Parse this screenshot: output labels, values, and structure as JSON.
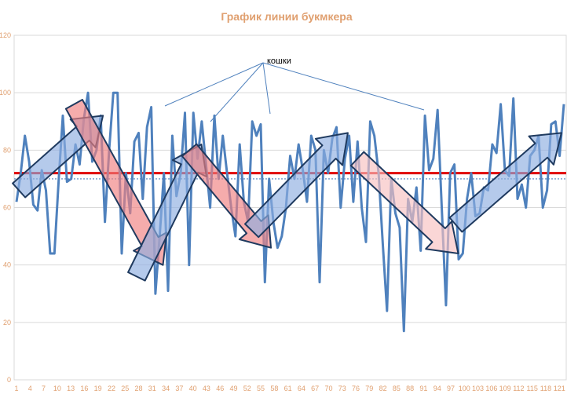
{
  "chart_data": {
    "type": "line",
    "title": "График линии букмкера",
    "xlabel": "",
    "ylabel": "",
    "ylim": [
      0,
      120
    ],
    "yticks": [
      "0",
      "20",
      "40",
      "60",
      "80",
      "100",
      "120"
    ],
    "xtick_labels": [
      "1",
      "4",
      "7",
      "10",
      "13",
      "16",
      "19",
      "22",
      "25",
      "28",
      "31",
      "34",
      "37",
      "40",
      "43",
      "46",
      "49",
      "52",
      "55",
      "58",
      "61",
      "64",
      "67",
      "70",
      "73",
      "76",
      "79",
      "82",
      "85",
      "88",
      "91",
      "94",
      "97",
      "100",
      "103",
      "106",
      "109",
      "112",
      "115",
      "118",
      "121"
    ],
    "grid": true,
    "legend": "none",
    "series": [
      {
        "values": [
          62,
          72,
          85,
          76,
          61,
          59,
          73,
          66,
          44,
          44,
          69,
          92,
          69,
          70,
          82,
          75,
          91,
          100,
          76,
          80,
          92,
          55,
          80,
          100,
          100,
          44,
          72,
          58,
          83,
          86,
          63,
          88,
          95,
          30,
          50,
          72,
          31,
          85,
          64,
          72,
          93,
          40,
          93,
          77,
          90,
          75,
          60,
          92,
          70,
          85,
          72,
          60,
          50,
          82,
          62,
          55,
          90,
          85,
          89,
          34,
          70,
          55,
          46,
          50,
          60,
          78,
          70,
          82,
          73,
          62,
          85,
          80,
          34,
          80,
          72,
          84,
          88,
          60,
          77,
          85,
          62,
          83,
          60,
          48,
          90,
          85,
          72,
          47,
          24,
          70,
          58,
          53,
          17,
          63,
          55,
          67,
          45,
          92,
          73,
          77,
          94,
          60,
          26,
          72,
          75,
          42,
          44,
          63,
          72,
          57,
          58,
          67,
          66,
          82,
          79,
          96,
          73,
          71,
          98,
          63,
          68,
          60,
          78,
          80,
          85,
          60,
          66,
          89,
          90,
          78,
          96
        ],
        "color": "#4F81BD"
      },
      {
        "values": [
          72,
          72
        ],
        "color": "#E00000"
      },
      {
        "values": [
          70,
          70
        ],
        "color": "#4F81BD",
        "style": "dotted"
      }
    ],
    "annotations": [
      {
        "text": "кошки"
      }
    ],
    "arrows": [
      {
        "color": "#8EADE0",
        "from": [
          2,
          66
        ],
        "to": [
          37,
          92
        ]
      },
      {
        "color": "#F08080",
        "from": [
          25,
          96
        ],
        "to": [
          62,
          40
        ]
      },
      {
        "color": "#8EADE0",
        "from": [
          51,
          36
        ],
        "to": [
          78,
          82
        ]
      },
      {
        "color": "#F08080",
        "from": [
          73,
          80
        ],
        "to": [
          107,
          46
        ]
      },
      {
        "color": "#8EADE0",
        "from": [
          99,
          52
        ],
        "to": [
          139,
          86
        ]
      },
      {
        "color": "#F8C0C0",
        "from": [
          143,
          77
        ],
        "to": [
          185,
          44
        ]
      },
      {
        "color": "#8EADE0",
        "from": [
          184,
          54
        ],
        "to": [
          228,
          86
        ]
      }
    ]
  }
}
